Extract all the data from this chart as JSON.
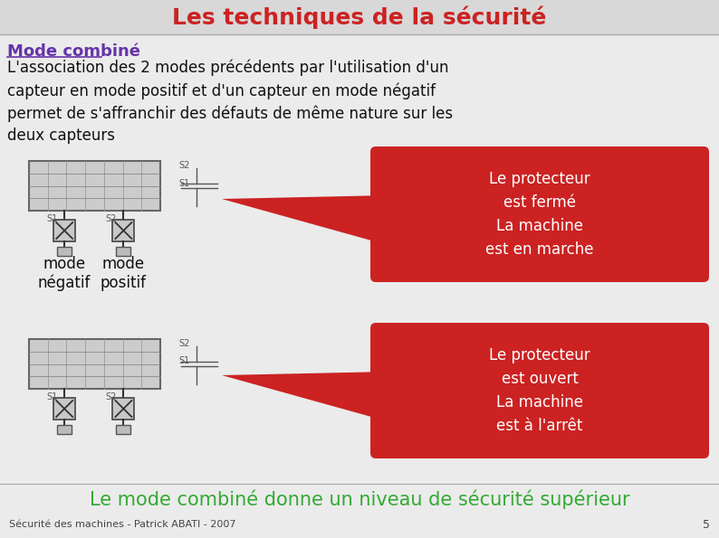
{
  "title": "Les techniques de la sécurité",
  "title_color": "#CC2222",
  "title_fontsize": 18,
  "bg_color": "#EBEBEB",
  "header_bg": "#D8D8D8",
  "subtitle": "Mode combiné",
  "subtitle_color": "#6633AA",
  "body_text": "L'association des 2 modes précédents par l'utilisation d'un\ncapteur en mode positif et d'un capteur en mode négatif\npermet de s'affranchir des défauts de même nature sur les\ndeux capteurs",
  "body_color": "#111111",
  "box1_text": "Le protecteur\nest fermé\nLa machine\nest en marche",
  "box2_text": "Le protecteur\nest ouvert\nLa machine\nest à l'arrêt",
  "box_bg": "#CC2222",
  "box_text_color": "#FFFFFF",
  "label_neg": "mode\nnégatif",
  "label_pos": "mode\npositif",
  "label_color": "#111111",
  "footer_text": "Le mode combiné donne un niveau de sécurité supérieur",
  "footer_color": "#33AA33",
  "credit_text": "Sécurité des machines - Patrick ABATI - 2007",
  "page_num": "5",
  "credit_color": "#444444"
}
